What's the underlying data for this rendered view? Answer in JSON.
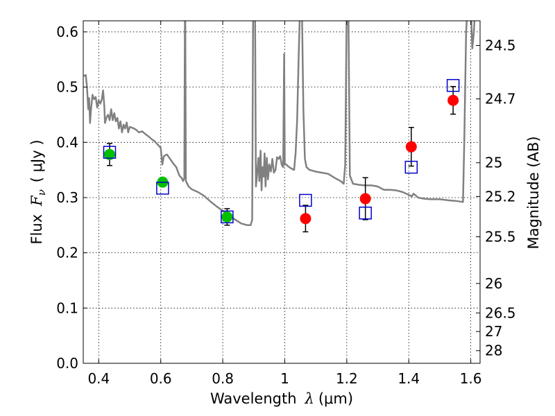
{
  "chart_data": {
    "type": "scatter",
    "xlabel_prefix": "Wavelength",
    "xlabel_symbol": "λ",
    "xlabel_unit": "(μm)",
    "ylabel_prefix": "Flux",
    "ylabel_symbol": "F",
    "ylabel_subscript": "ν",
    "ylabel_unit": "( μJy )",
    "y2label": "Magnitude (AB)",
    "xlim": [
      0.35,
      1.63
    ],
    "ylim": [
      0.0,
      0.62
    ],
    "grid": true,
    "x_ticks": [
      {
        "value": 0.4,
        "label": "0.4"
      },
      {
        "value": 0.6,
        "label": "0.6"
      },
      {
        "value": 0.8,
        "label": "0.8"
      },
      {
        "value": 1.0,
        "label": "1"
      },
      {
        "value": 1.2,
        "label": "1.2"
      },
      {
        "value": 1.4,
        "label": "1.4"
      },
      {
        "value": 1.6,
        "label": "1.6"
      }
    ],
    "y_ticks": [
      {
        "value": 0.0,
        "label": "0.0"
      },
      {
        "value": 0.1,
        "label": "0.1"
      },
      {
        "value": 0.2,
        "label": "0.2"
      },
      {
        "value": 0.3,
        "label": "0.3"
      },
      {
        "value": 0.4,
        "label": "0.4"
      },
      {
        "value": 0.5,
        "label": "0.5"
      },
      {
        "value": 0.6,
        "label": "0.6"
      }
    ],
    "y2_ticks": [
      {
        "value": 24.5,
        "label": "24.5"
      },
      {
        "value": 24.7,
        "label": "24.7"
      },
      {
        "value": 25,
        "label": "25"
      },
      {
        "value": 25.2,
        "label": "25.2"
      },
      {
        "value": 25.5,
        "label": "25.5"
      },
      {
        "value": 26,
        "label": "26"
      },
      {
        "value": 26.5,
        "label": "26.5"
      },
      {
        "value": 27,
        "label": "27"
      },
      {
        "value": 28,
        "label": "28"
      }
    ],
    "model_spectrum": {
      "color": "#808080",
      "points": [
        [
          0.352,
          0.52
        ],
        [
          0.358,
          0.522
        ],
        [
          0.362,
          0.5
        ],
        [
          0.366,
          0.46
        ],
        [
          0.369,
          0.48
        ],
        [
          0.372,
          0.435
        ],
        [
          0.375,
          0.46
        ],
        [
          0.38,
          0.486
        ],
        [
          0.385,
          0.478
        ],
        [
          0.39,
          0.482
        ],
        [
          0.395,
          0.463
        ],
        [
          0.4,
          0.476
        ],
        [
          0.405,
          0.47
        ],
        [
          0.41,
          0.478
        ],
        [
          0.414,
          0.494
        ],
        [
          0.418,
          0.465
        ],
        [
          0.42,
          0.435
        ],
        [
          0.425,
          0.445
        ],
        [
          0.43,
          0.45
        ],
        [
          0.435,
          0.44
        ],
        [
          0.44,
          0.46
        ],
        [
          0.445,
          0.44
        ],
        [
          0.45,
          0.453
        ],
        [
          0.455,
          0.438
        ],
        [
          0.46,
          0.444
        ],
        [
          0.465,
          0.425
        ],
        [
          0.47,
          0.438
        ],
        [
          0.475,
          0.418
        ],
        [
          0.48,
          0.432
        ],
        [
          0.485,
          0.425
        ],
        [
          0.49,
          0.436
        ],
        [
          0.495,
          0.418
        ],
        [
          0.5,
          0.428
        ],
        [
          0.51,
          0.426
        ],
        [
          0.52,
          0.423
        ],
        [
          0.53,
          0.418
        ],
        [
          0.54,
          0.42
        ],
        [
          0.55,
          0.415
        ],
        [
          0.56,
          0.411
        ],
        [
          0.57,
          0.406
        ],
        [
          0.58,
          0.402
        ],
        [
          0.59,
          0.396
        ],
        [
          0.6,
          0.39
        ],
        [
          0.605,
          0.36
        ],
        [
          0.61,
          0.375
        ],
        [
          0.62,
          0.378
        ],
        [
          0.63,
          0.37
        ],
        [
          0.64,
          0.362
        ],
        [
          0.65,
          0.355
        ],
        [
          0.66,
          0.34
        ],
        [
          0.668,
          0.335
        ],
        [
          0.672,
          0.33
        ],
        [
          0.676,
          0.335
        ],
        [
          0.678,
          0.65
        ],
        [
          0.679,
          0.65
        ],
        [
          0.681,
          0.33
        ],
        [
          0.69,
          0.32
        ],
        [
          0.7,
          0.315
        ],
        [
          0.72,
          0.31
        ],
        [
          0.74,
          0.303
        ],
        [
          0.76,
          0.293
        ],
        [
          0.78,
          0.284
        ],
        [
          0.8,
          0.276
        ],
        [
          0.82,
          0.268
        ],
        [
          0.84,
          0.26
        ],
        [
          0.86,
          0.253
        ],
        [
          0.88,
          0.25
        ],
        [
          0.89,
          0.25
        ],
        [
          0.895,
          0.26
        ],
        [
          0.898,
          0.65
        ],
        [
          0.904,
          0.65
        ],
        [
          0.907,
          0.32
        ],
        [
          0.91,
          0.338
        ],
        [
          0.915,
          0.372
        ],
        [
          0.918,
          0.33
        ],
        [
          0.922,
          0.385
        ],
        [
          0.925,
          0.313
        ],
        [
          0.928,
          0.355
        ],
        [
          0.932,
          0.338
        ],
        [
          0.935,
          0.38
        ],
        [
          0.938,
          0.32
        ],
        [
          0.942,
          0.372
        ],
        [
          0.946,
          0.333
        ],
        [
          0.95,
          0.36
        ],
        [
          0.955,
          0.347
        ],
        [
          0.96,
          0.37
        ],
        [
          0.965,
          0.345
        ],
        [
          0.97,
          0.35
        ],
        [
          0.975,
          0.373
        ],
        [
          0.98,
          0.37
        ],
        [
          0.985,
          0.375
        ],
        [
          0.99,
          0.36
        ],
        [
          0.995,
          0.355
        ],
        [
          0.998,
          0.56
        ],
        [
          1.0,
          0.36
        ],
        [
          1.005,
          0.36
        ],
        [
          1.01,
          0.357
        ],
        [
          1.02,
          0.353
        ],
        [
          1.03,
          0.35
        ],
        [
          1.035,
          0.38
        ],
        [
          1.04,
          0.44
        ],
        [
          1.045,
          0.56
        ],
        [
          1.05,
          0.66
        ],
        [
          1.055,
          0.66
        ],
        [
          1.06,
          0.46
        ],
        [
          1.065,
          0.37
        ],
        [
          1.07,
          0.355
        ],
        [
          1.08,
          0.35
        ],
        [
          1.1,
          0.347
        ],
        [
          1.12,
          0.345
        ],
        [
          1.14,
          0.343
        ],
        [
          1.16,
          0.336
        ],
        [
          1.18,
          0.33
        ],
        [
          1.19,
          0.325
        ],
        [
          1.195,
          0.36
        ],
        [
          1.2,
          0.65
        ],
        [
          1.205,
          0.65
        ],
        [
          1.21,
          0.34
        ],
        [
          1.22,
          0.325
        ],
        [
          1.24,
          0.323
        ],
        [
          1.26,
          0.322
        ],
        [
          1.28,
          0.322
        ],
        [
          1.3,
          0.32
        ],
        [
          1.32,
          0.314
        ],
        [
          1.34,
          0.314
        ],
        [
          1.36,
          0.313
        ],
        [
          1.38,
          0.31
        ],
        [
          1.4,
          0.305
        ],
        [
          1.41,
          0.302
        ],
        [
          1.415,
          0.307
        ],
        [
          1.42,
          0.305
        ],
        [
          1.43,
          0.3
        ],
        [
          1.45,
          0.298
        ],
        [
          1.47,
          0.297
        ],
        [
          1.5,
          0.297
        ],
        [
          1.53,
          0.295
        ],
        [
          1.55,
          0.294
        ],
        [
          1.575,
          0.292
        ],
        [
          1.579,
          0.4
        ],
        [
          1.585,
          0.6
        ],
        [
          1.59,
          0.65
        ],
        [
          1.6,
          0.65
        ],
        [
          1.605,
          0.57
        ],
        [
          1.61,
          0.6
        ],
        [
          1.615,
          0.66
        ]
      ]
    },
    "series": [
      {
        "name": "",
        "marker": "circle",
        "color": "#00c000",
        "points": [
          {
            "x": 0.435,
            "y": 0.378,
            "err": 0.02
          },
          {
            "x": 0.606,
            "y": 0.328,
            "err": 0.0
          },
          {
            "x": 0.814,
            "y": 0.265,
            "err": 0.015
          }
        ]
      },
      {
        "name": "",
        "marker": "circle",
        "color": "#ff0000",
        "points": [
          {
            "x": 1.067,
            "y": 0.262,
            "err": 0.024
          },
          {
            "x": 1.26,
            "y": 0.298,
            "err": 0.038
          },
          {
            "x": 1.408,
            "y": 0.392,
            "err": 0.035
          },
          {
            "x": 1.543,
            "y": 0.476,
            "err": 0.025
          }
        ]
      },
      {
        "name": "",
        "marker": "square-open",
        "color": "#0000cc",
        "points": [
          {
            "x": 0.435,
            "y": 0.382
          },
          {
            "x": 0.606,
            "y": 0.317
          },
          {
            "x": 0.814,
            "y": 0.265
          },
          {
            "x": 1.067,
            "y": 0.295
          },
          {
            "x": 1.26,
            "y": 0.272
          },
          {
            "x": 1.408,
            "y": 0.355
          },
          {
            "x": 1.543,
            "y": 0.503
          }
        ]
      }
    ]
  }
}
